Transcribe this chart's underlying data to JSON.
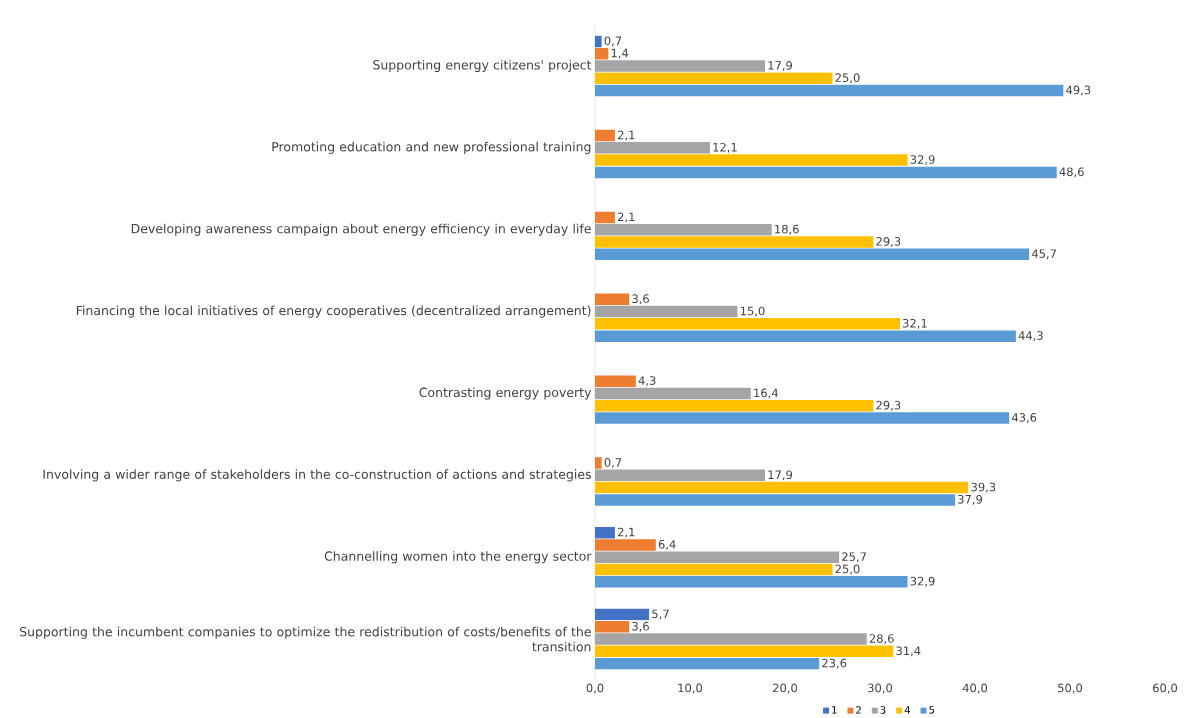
{
  "chart_data": {
    "type": "bar",
    "orientation": "horizontal",
    "categories": [
      "Supporting energy citizens' project",
      "Promoting education and new professional training",
      "Developing awareness campaign about energy efficiency in everyday life",
      "Financing the local initiatives of energy cooperatives (decentralized arrangement)",
      "Contrasting energy poverty",
      "Involving a wider range of stakeholders in the co-construction of actions and strategies",
      "Channelling women into the energy sector",
      "Supporting the incumbent companies to optimize the redistribution of costs/benefits of the transition"
    ],
    "series": [
      {
        "name": "1",
        "color": "#4472c4",
        "values": [
          0.7,
          null,
          null,
          null,
          null,
          null,
          2.1,
          5.7
        ],
        "value_labels": [
          "0,7",
          null,
          null,
          null,
          null,
          null,
          "2,1",
          "5,7"
        ]
      },
      {
        "name": "2",
        "color": "#ed7d31",
        "values": [
          1.4,
          2.1,
          2.1,
          3.6,
          4.3,
          0.7,
          6.4,
          3.6
        ],
        "value_labels": [
          "1,4",
          "2,1",
          "2,1",
          "3,6",
          "4,3",
          "0,7",
          "6,4",
          "3,6"
        ]
      },
      {
        "name": "3",
        "color": "#a5a5a5",
        "values": [
          17.9,
          12.1,
          18.6,
          15.0,
          16.4,
          17.9,
          25.7,
          28.6
        ],
        "value_labels": [
          "17,9",
          "12,1",
          "18,6",
          "15,0",
          "16,4",
          "17,9",
          "25,7",
          "28,6"
        ]
      },
      {
        "name": "4",
        "color": "#ffc000",
        "values": [
          25.0,
          32.9,
          29.3,
          32.1,
          29.3,
          39.3,
          25.0,
          31.4
        ],
        "value_labels": [
          "25,0",
          "32,9",
          "29,3",
          "32,1",
          "29,3",
          "39,3",
          "25,0",
          "31,4"
        ]
      },
      {
        "name": "5",
        "color": "#5b9bd5",
        "values": [
          49.3,
          48.6,
          45.7,
          44.3,
          43.6,
          37.9,
          32.9,
          23.6
        ],
        "value_labels": [
          "49,3",
          "48,6",
          "45,7",
          "44,3",
          "43,6",
          "37,9",
          "32,9",
          "23,6"
        ]
      }
    ],
    "xlim": [
      0,
      60
    ],
    "xticks": [
      {
        "value": 0,
        "label": "0,0"
      },
      {
        "value": 10,
        "label": "10,0"
      },
      {
        "value": 20,
        "label": "20,0"
      },
      {
        "value": 30,
        "label": "30,0"
      },
      {
        "value": 40,
        "label": "40,0"
      },
      {
        "value": 50,
        "label": "50,0"
      },
      {
        "value": 60,
        "label": "60,0"
      }
    ],
    "legend": "bottom"
  }
}
